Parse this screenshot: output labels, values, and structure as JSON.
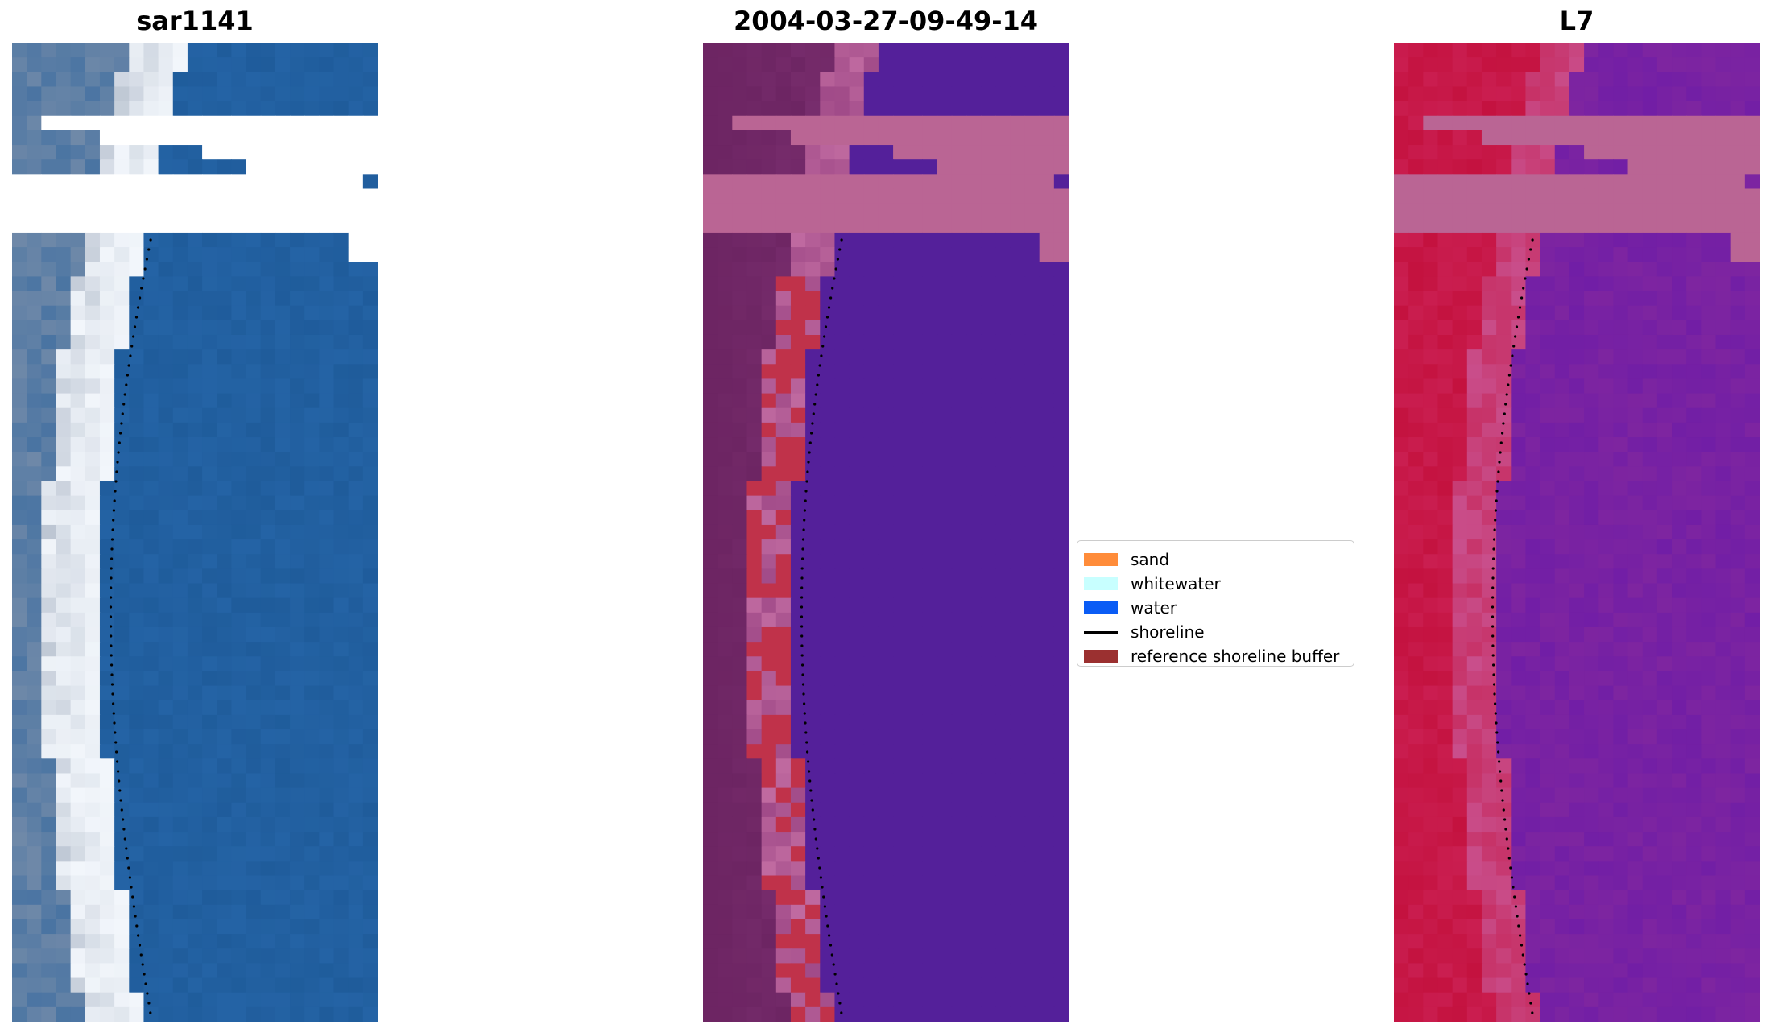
{
  "panels": [
    {
      "title": "sar1141",
      "view": "rgb"
    },
    {
      "title": "2004-03-27-09-49-14",
      "view": "classification"
    },
    {
      "title": "L7",
      "view": "mndwi"
    }
  ],
  "legend": {
    "items": [
      {
        "label": "sand",
        "kind": "patch",
        "color": "#ff8c3a"
      },
      {
        "label": "whitewater",
        "kind": "patch",
        "color": "#c8ffff"
      },
      {
        "label": "water",
        "kind": "patch",
        "color": "#0a5cf5"
      },
      {
        "label": "shoreline",
        "kind": "line",
        "color": "#000000"
      },
      {
        "label": "reference shoreline buffer",
        "kind": "patch",
        "color": "#9b3030"
      }
    ]
  },
  "colors": {
    "rgb_sand": "#8a98ad",
    "rgb_white": "#f2f6fb",
    "rgb_water": "#1f5c9b",
    "class_land": "#6d2563",
    "class_water": "#54209a",
    "class_buffer": "#c0324a",
    "class_nodata": "#ba6594",
    "mndwi_land": "#c4123f",
    "mndwi_water": "#7e25a0",
    "mndwi_edge": "#c94f8c",
    "mndwi_nodata": "#ba6594"
  }
}
